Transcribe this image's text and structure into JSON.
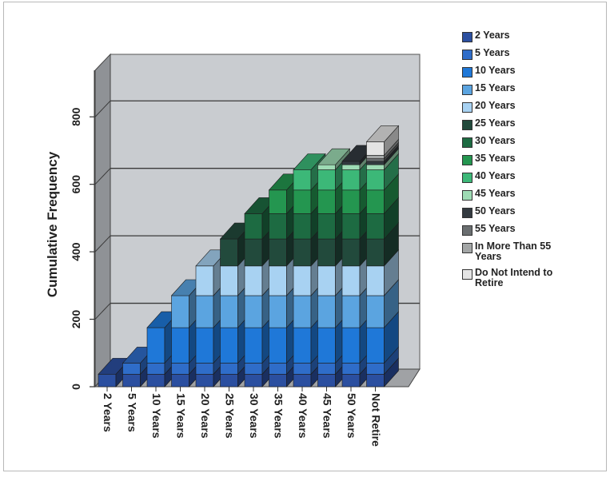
{
  "chart_data": {
    "type": "bar",
    "ylabel": "Cumulative Frequency",
    "xlabel": "",
    "ylim": [
      0,
      900
    ],
    "yticks": [
      "0",
      "200",
      "400",
      "600",
      "800"
    ],
    "ytick_values": [
      0,
      200,
      400,
      600,
      800
    ],
    "categories": [
      "2 Years",
      "5 Years",
      "10 Years",
      "15 Years",
      "20 Years",
      "25 Years",
      "30 Years",
      "35 Years",
      "40 Years",
      "45 Years",
      "50 Years",
      "Not Retire"
    ],
    "series": [
      {
        "name": "2 Years",
        "color": "#2b4fa0",
        "values": [
          37,
          37,
          37,
          37,
          37,
          37,
          37,
          37,
          37,
          37,
          37,
          37
        ]
      },
      {
        "name": "5 Years",
        "color": "#2f6dc9",
        "values": [
          0,
          33,
          33,
          33,
          33,
          33,
          33,
          33,
          33,
          33,
          33,
          33
        ]
      },
      {
        "name": "10 Years",
        "color": "#1f78d8",
        "values": [
          0,
          0,
          105,
          105,
          105,
          105,
          105,
          105,
          105,
          105,
          105,
          105
        ]
      },
      {
        "name": "15 Years",
        "color": "#5ba4e0",
        "values": [
          0,
          0,
          0,
          95,
          95,
          95,
          95,
          95,
          95,
          95,
          95,
          95
        ]
      },
      {
        "name": "20 Years",
        "color": "#a8d2f2",
        "values": [
          0,
          0,
          0,
          0,
          88,
          88,
          88,
          88,
          88,
          88,
          88,
          88
        ]
      },
      {
        "name": "25 Years",
        "color": "#224a3c",
        "values": [
          0,
          0,
          0,
          0,
          0,
          80,
          80,
          80,
          80,
          80,
          80,
          80
        ]
      },
      {
        "name": "30 Years",
        "color": "#1d6b42",
        "values": [
          0,
          0,
          0,
          0,
          0,
          0,
          75,
          75,
          75,
          75,
          75,
          75
        ]
      },
      {
        "name": "35 Years",
        "color": "#249650",
        "values": [
          0,
          0,
          0,
          0,
          0,
          0,
          0,
          70,
          70,
          70,
          70,
          70
        ]
      },
      {
        "name": "40 Years",
        "color": "#3cb878",
        "values": [
          0,
          0,
          0,
          0,
          0,
          0,
          0,
          0,
          60,
          60,
          60,
          60
        ]
      },
      {
        "name": "45 Years",
        "color": "#9edbb4",
        "values": [
          0,
          0,
          0,
          0,
          0,
          0,
          0,
          0,
          0,
          15,
          15,
          15
        ]
      },
      {
        "name": "50 Years",
        "color": "#333a40",
        "values": [
          0,
          0,
          0,
          0,
          0,
          0,
          0,
          0,
          0,
          0,
          10,
          10
        ]
      },
      {
        "name": "55 Years",
        "color": "#6a6e70",
        "values": [
          0,
          0,
          0,
          0,
          0,
          0,
          0,
          0,
          0,
          0,
          0,
          8
        ]
      },
      {
        "name": "In More Than 55\nYears",
        "color": "#a3a6a6",
        "values": [
          0,
          0,
          0,
          0,
          0,
          0,
          0,
          0,
          0,
          0,
          0,
          10
        ]
      },
      {
        "name": "Do Not Intend to\nRetire",
        "color": "#e4e4e4",
        "values": [
          0,
          0,
          0,
          0,
          0,
          0,
          0,
          0,
          0,
          0,
          0,
          40
        ]
      }
    ],
    "grid": true,
    "legend": "right"
  }
}
